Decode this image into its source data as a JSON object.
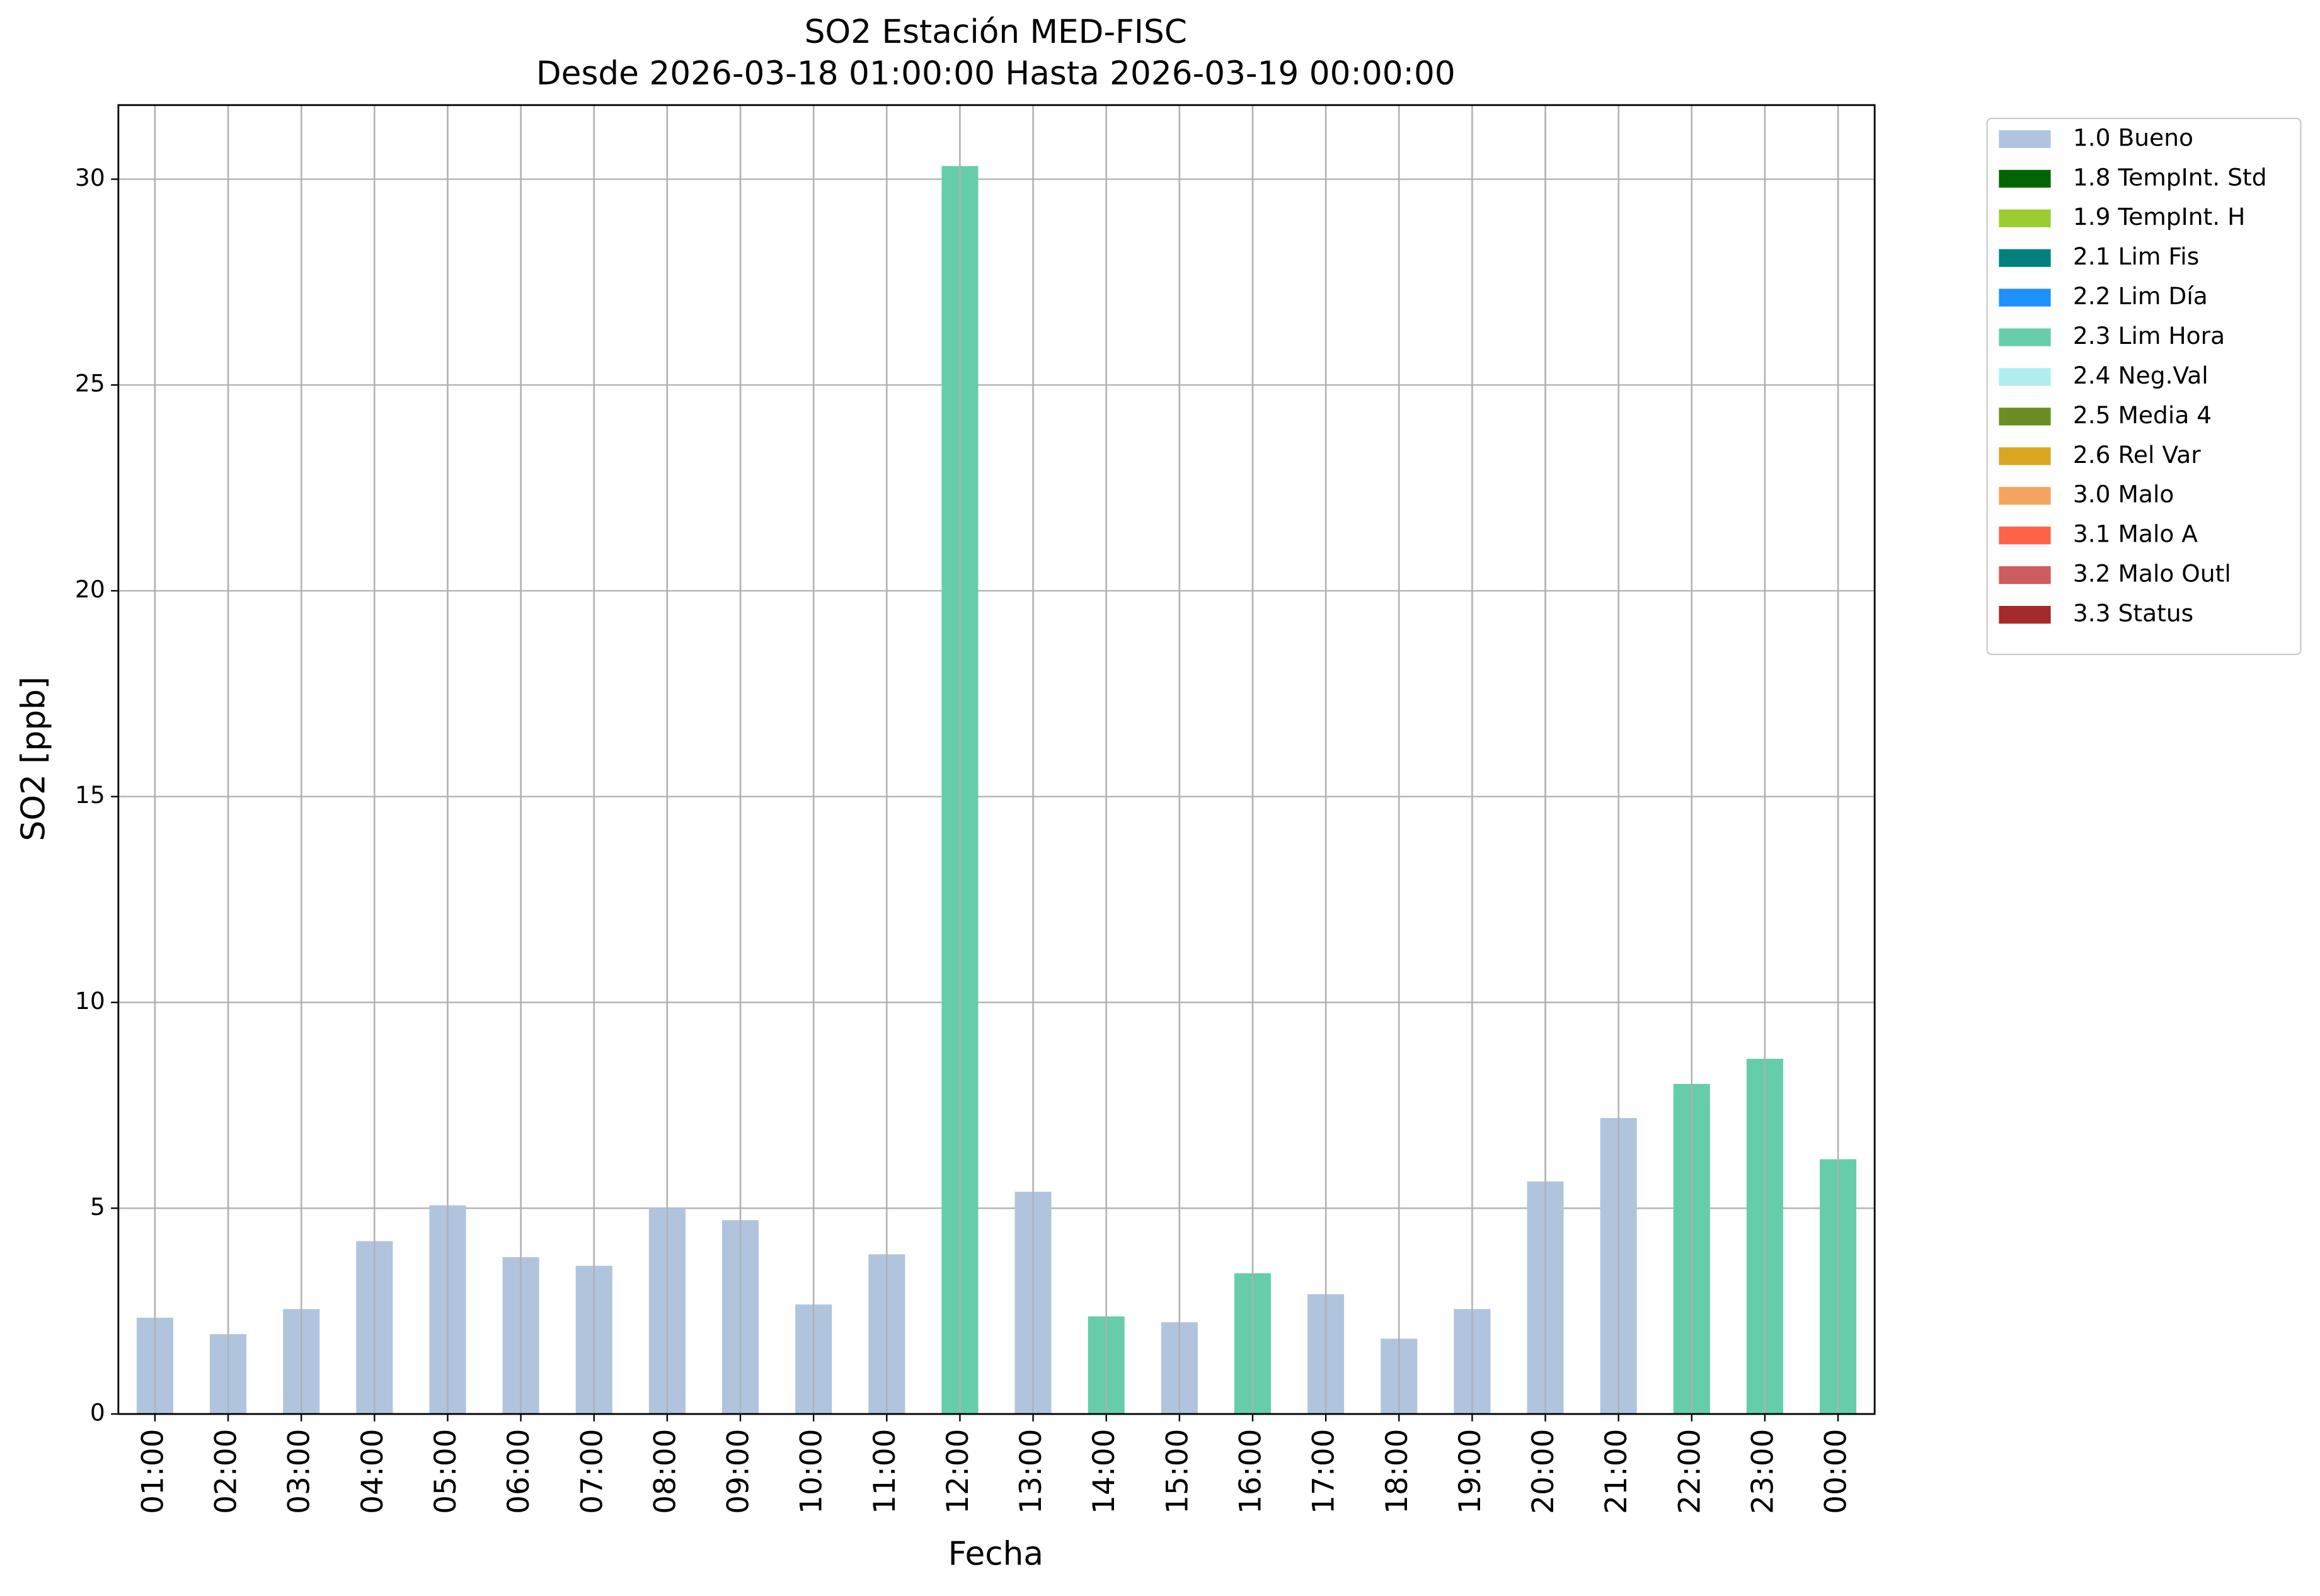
{
  "chart_data": {
    "type": "stacked_bar",
    "title": "SO2 Estación MED-FISC",
    "subtitle": "Desde 2026-03-18 01:00:00 Hasta 2026-03-19 00:00:00",
    "x_label": "Fecha",
    "y_label": "SO2 [ppb]",
    "categories": [
      "01:00",
      "02:00",
      "03:00",
      "04:00",
      "05:00",
      "06:00",
      "07:00",
      "08:00",
      "09:00",
      "10:00",
      "11:00",
      "12:00",
      "13:00",
      "14:00",
      "15:00",
      "16:00",
      "17:00",
      "18:00",
      "19:00",
      "20:00",
      "21:00",
      "22:00",
      "23:00",
      "00:00"
    ],
    "series": [
      {
        "name": "1.0 Bueno",
        "color": "#b0c4de",
        "values": [
          2.34,
          1.94,
          2.55,
          4.2,
          5.07,
          3.81,
          3.6,
          5.0,
          4.71,
          2.66,
          3.88,
          null,
          5.4,
          null,
          2.23,
          null,
          2.91,
          1.83,
          2.55,
          5.65,
          7.19,
          null,
          null,
          null
        ]
      },
      {
        "name": "1.8 TempInt. Std",
        "color": "#006400",
        "values": [
          null,
          null,
          null,
          null,
          null,
          null,
          null,
          null,
          null,
          null,
          null,
          null,
          null,
          null,
          null,
          null,
          null,
          null,
          null,
          null,
          null,
          null,
          null,
          null
        ]
      },
      {
        "name": "1.9 TempInt. H",
        "color": "#9acd32",
        "values": [
          null,
          null,
          null,
          null,
          null,
          null,
          null,
          null,
          null,
          null,
          null,
          null,
          null,
          null,
          null,
          null,
          null,
          null,
          null,
          null,
          null,
          null,
          null,
          null
        ]
      },
      {
        "name": "2.1 Lim Fis",
        "color": "#008080",
        "values": [
          null,
          null,
          null,
          null,
          null,
          null,
          null,
          null,
          null,
          null,
          null,
          null,
          null,
          null,
          null,
          null,
          null,
          null,
          null,
          null,
          null,
          null,
          null,
          null
        ]
      },
      {
        "name": "2.2 Lim Día",
        "color": "#1e90ff",
        "values": [
          null,
          null,
          null,
          null,
          null,
          null,
          null,
          null,
          null,
          null,
          null,
          null,
          null,
          null,
          null,
          null,
          null,
          null,
          null,
          null,
          null,
          null,
          null,
          null
        ]
      },
      {
        "name": "2.3 Lim Hora",
        "color": "#66cdaa",
        "values": [
          null,
          null,
          null,
          null,
          null,
          null,
          null,
          null,
          null,
          null,
          null,
          30.32,
          null,
          2.37,
          null,
          3.42,
          null,
          null,
          null,
          null,
          null,
          8.02,
          8.63,
          6.19
        ]
      },
      {
        "name": "2.4 Neg.Val",
        "color": "#afeeee",
        "values": [
          null,
          null,
          null,
          null,
          null,
          null,
          null,
          null,
          null,
          null,
          null,
          null,
          null,
          null,
          null,
          null,
          null,
          null,
          null,
          null,
          null,
          null,
          null,
          null
        ]
      },
      {
        "name": "2.5 Media 4",
        "color": "#6b8e23",
        "values": [
          null,
          null,
          null,
          null,
          null,
          null,
          null,
          null,
          null,
          null,
          null,
          null,
          null,
          null,
          null,
          null,
          null,
          null,
          null,
          null,
          null,
          null,
          null,
          null
        ]
      },
      {
        "name": "2.6 Rel Var",
        "color": "#daa520",
        "values": [
          null,
          null,
          null,
          null,
          null,
          null,
          null,
          null,
          null,
          null,
          null,
          null,
          null,
          null,
          null,
          null,
          null,
          null,
          null,
          null,
          null,
          null,
          null,
          null
        ]
      },
      {
        "name": "3.0 Malo",
        "color": "#f4a460",
        "values": [
          null,
          null,
          null,
          null,
          null,
          null,
          null,
          null,
          null,
          null,
          null,
          null,
          null,
          null,
          null,
          null,
          null,
          null,
          null,
          null,
          null,
          null,
          null,
          null
        ]
      },
      {
        "name": "3.1 Malo A",
        "color": "#ff6347",
        "values": [
          null,
          null,
          null,
          null,
          null,
          null,
          null,
          null,
          null,
          null,
          null,
          null,
          null,
          null,
          null,
          null,
          null,
          null,
          null,
          null,
          null,
          null,
          null,
          null
        ]
      },
      {
        "name": "3.2 Malo Outl",
        "color": "#cd5c5c",
        "values": [
          null,
          null,
          null,
          null,
          null,
          null,
          null,
          null,
          null,
          null,
          null,
          null,
          null,
          null,
          null,
          null,
          null,
          null,
          null,
          null,
          null,
          null,
          null,
          null
        ]
      },
      {
        "name": "3.3 Status",
        "color": "#a52a2a",
        "values": [
          null,
          null,
          null,
          null,
          null,
          null,
          null,
          null,
          null,
          null,
          null,
          null,
          null,
          null,
          null,
          null,
          null,
          null,
          null,
          null,
          null,
          null,
          null,
          null
        ]
      }
    ],
    "ylim": [
      0,
      31.8
    ],
    "yticks": [
      0,
      5,
      10,
      15,
      20,
      25,
      30
    ],
    "grid": true,
    "legend": "outside-upper-right"
  }
}
